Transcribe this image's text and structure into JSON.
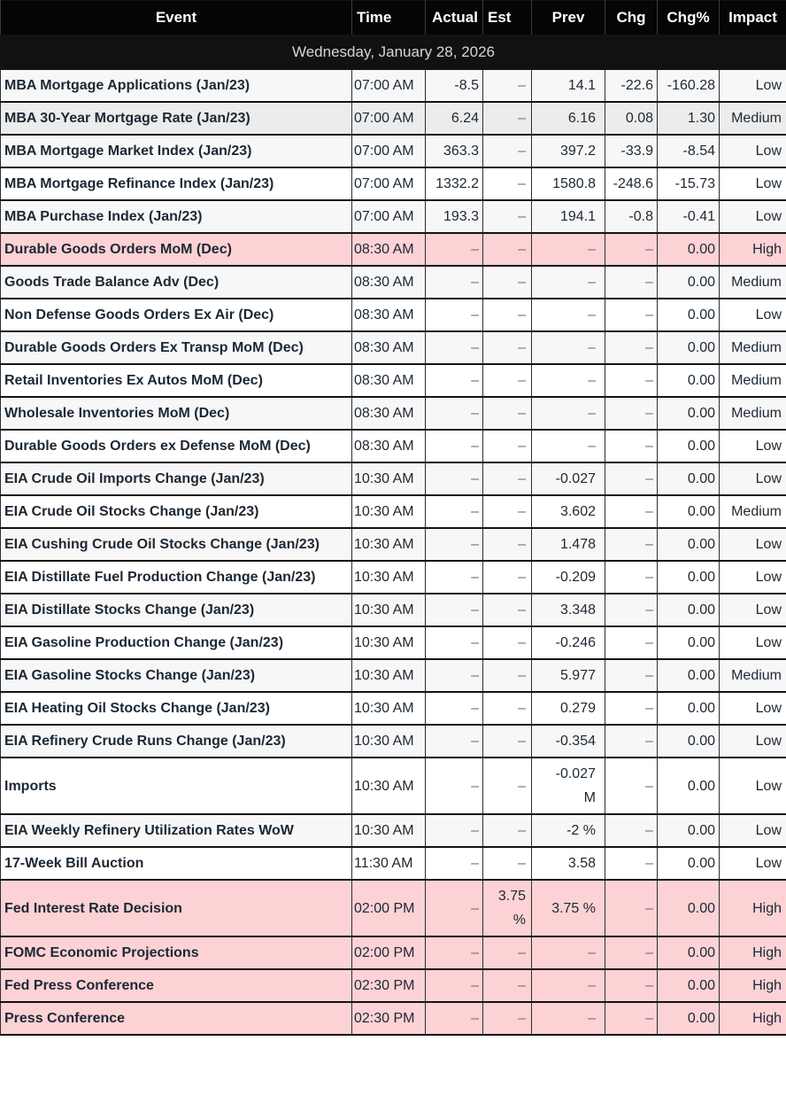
{
  "date_label": "Wednesday, January 28, 2026",
  "empty_placeholder": "–",
  "columns": [
    "Event",
    "Time",
    "Actual",
    "Est",
    "Prev",
    "Chg",
    "Chg%",
    "Impact"
  ],
  "colors": {
    "header_bg": "#050505",
    "date_bg": "#111111",
    "stripe": "#f7f7f7",
    "row_highlight": "#ececec",
    "high_impact_bg": "#fcd2d5",
    "text": "#1c2833",
    "muted_dash": "#6e6e6e"
  },
  "rows": [
    {
      "event": "MBA Mortgage Applications (Jan/23)",
      "time": "07:00 AM",
      "actual": "-8.5",
      "est": "–",
      "prev": "14.1",
      "chg": "-22.6",
      "chg_pct": "-160.28",
      "impact": "Low"
    },
    {
      "event": "MBA 30-Year Mortgage Rate (Jan/23)",
      "time": "07:00 AM",
      "actual": "6.24",
      "est": "–",
      "prev": "6.16",
      "chg": "0.08",
      "chg_pct": "1.30",
      "impact": "Medium",
      "highlighted": true
    },
    {
      "event": "MBA Mortgage Market Index (Jan/23)",
      "time": "07:00 AM",
      "actual": "363.3",
      "est": "–",
      "prev": "397.2",
      "chg": "-33.9",
      "chg_pct": "-8.54",
      "impact": "Low"
    },
    {
      "event": "MBA Mortgage Refinance Index (Jan/23)",
      "time": "07:00 AM",
      "actual": "1332.2",
      "est": "–",
      "prev": "1580.8",
      "chg": "-248.6",
      "chg_pct": "-15.73",
      "impact": "Low"
    },
    {
      "event": "MBA Purchase Index (Jan/23)",
      "time": "07:00 AM",
      "actual": "193.3",
      "est": "–",
      "prev": "194.1",
      "chg": "-0.8",
      "chg_pct": "-0.41",
      "impact": "Low"
    },
    {
      "event": "Durable Goods Orders MoM (Dec)",
      "time": "08:30 AM",
      "actual": "–",
      "est": "–",
      "prev": "–",
      "chg": "–",
      "chg_pct": "0.00",
      "impact": "High"
    },
    {
      "event": "Goods Trade Balance Adv (Dec)",
      "time": "08:30 AM",
      "actual": "–",
      "est": "–",
      "prev": "–",
      "chg": "–",
      "chg_pct": "0.00",
      "impact": "Medium"
    },
    {
      "event": "Non Defense Goods Orders Ex Air (Dec)",
      "time": "08:30 AM",
      "actual": "–",
      "est": "–",
      "prev": "–",
      "chg": "–",
      "chg_pct": "0.00",
      "impact": "Low"
    },
    {
      "event": "Durable Goods Orders Ex Transp MoM (Dec)",
      "time": "08:30 AM",
      "actual": "–",
      "est": "–",
      "prev": "–",
      "chg": "–",
      "chg_pct": "0.00",
      "impact": "Medium"
    },
    {
      "event": "Retail Inventories Ex Autos MoM (Dec)",
      "time": "08:30 AM",
      "actual": "–",
      "est": "–",
      "prev": "–",
      "chg": "–",
      "chg_pct": "0.00",
      "impact": "Medium"
    },
    {
      "event": "Wholesale Inventories MoM (Dec)",
      "time": "08:30 AM",
      "actual": "–",
      "est": "–",
      "prev": "–",
      "chg": "–",
      "chg_pct": "0.00",
      "impact": "Medium"
    },
    {
      "event": "Durable Goods Orders ex Defense MoM (Dec)",
      "time": "08:30 AM",
      "actual": "–",
      "est": "–",
      "prev": "–",
      "chg": "–",
      "chg_pct": "0.00",
      "impact": "Low"
    },
    {
      "event": "EIA Crude Oil Imports Change (Jan/23)",
      "time": "10:30 AM",
      "actual": "–",
      "est": "–",
      "prev": "-0.027",
      "chg": "–",
      "chg_pct": "0.00",
      "impact": "Low"
    },
    {
      "event": "EIA Crude Oil Stocks Change (Jan/23)",
      "time": "10:30 AM",
      "actual": "–",
      "est": "–",
      "prev": "3.602",
      "chg": "–",
      "chg_pct": "0.00",
      "impact": "Medium"
    },
    {
      "event": "EIA Cushing Crude Oil Stocks Change (Jan/23)",
      "time": "10:30 AM",
      "actual": "–",
      "est": "–",
      "prev": "1.478",
      "chg": "–",
      "chg_pct": "0.00",
      "impact": "Low"
    },
    {
      "event": "EIA Distillate Fuel Production Change (Jan/23)",
      "time": "10:30 AM",
      "actual": "–",
      "est": "–",
      "prev": "-0.209",
      "chg": "–",
      "chg_pct": "0.00",
      "impact": "Low"
    },
    {
      "event": "EIA Distillate Stocks Change (Jan/23)",
      "time": "10:30 AM",
      "actual": "–",
      "est": "–",
      "prev": "3.348",
      "chg": "–",
      "chg_pct": "0.00",
      "impact": "Low"
    },
    {
      "event": "EIA Gasoline Production Change (Jan/23)",
      "time": "10:30 AM",
      "actual": "–",
      "est": "–",
      "prev": "-0.246",
      "chg": "–",
      "chg_pct": "0.00",
      "impact": "Low"
    },
    {
      "event": "EIA Gasoline Stocks Change (Jan/23)",
      "time": "10:30 AM",
      "actual": "–",
      "est": "–",
      "prev": "5.977",
      "chg": "–",
      "chg_pct": "0.00",
      "impact": "Medium"
    },
    {
      "event": "EIA Heating Oil Stocks Change (Jan/23)",
      "time": "10:30 AM",
      "actual": "–",
      "est": "–",
      "prev": "0.279",
      "chg": "–",
      "chg_pct": "0.00",
      "impact": "Low"
    },
    {
      "event": "EIA Refinery Crude Runs Change (Jan/23)",
      "time": "10:30 AM",
      "actual": "–",
      "est": "–",
      "prev": "-0.354",
      "chg": "–",
      "chg_pct": "0.00",
      "impact": "Low"
    },
    {
      "event": "Imports",
      "time": "10:30 AM",
      "actual": "–",
      "est": "–",
      "prev": "-0.027 M",
      "chg": "–",
      "chg_pct": "0.00",
      "impact": "Low"
    },
    {
      "event": "EIA Weekly Refinery Utilization Rates WoW",
      "time": "10:30 AM",
      "actual": "–",
      "est": "–",
      "prev": "-2 %",
      "chg": "–",
      "chg_pct": "0.00",
      "impact": "Low"
    },
    {
      "event": "17-Week Bill Auction",
      "time": "11:30 AM",
      "actual": "–",
      "est": "–",
      "prev": "3.58",
      "chg": "–",
      "chg_pct": "0.00",
      "impact": "Low"
    },
    {
      "event": "Fed Interest Rate Decision",
      "time": "02:00 PM",
      "actual": "–",
      "est": "3.75 %",
      "prev": "3.75 %",
      "chg": "–",
      "chg_pct": "0.00",
      "impact": "High"
    },
    {
      "event": "FOMC Economic Projections",
      "time": "02:00 PM",
      "actual": "–",
      "est": "–",
      "prev": "–",
      "chg": "–",
      "chg_pct": "0.00",
      "impact": "High"
    },
    {
      "event": "Fed Press Conference",
      "time": "02:30 PM",
      "actual": "–",
      "est": "–",
      "prev": "–",
      "chg": "–",
      "chg_pct": "0.00",
      "impact": "High"
    },
    {
      "event": "Press Conference",
      "time": "02:30 PM",
      "actual": "–",
      "est": "–",
      "prev": "–",
      "chg": "–",
      "chg_pct": "0.00",
      "impact": "High"
    }
  ]
}
